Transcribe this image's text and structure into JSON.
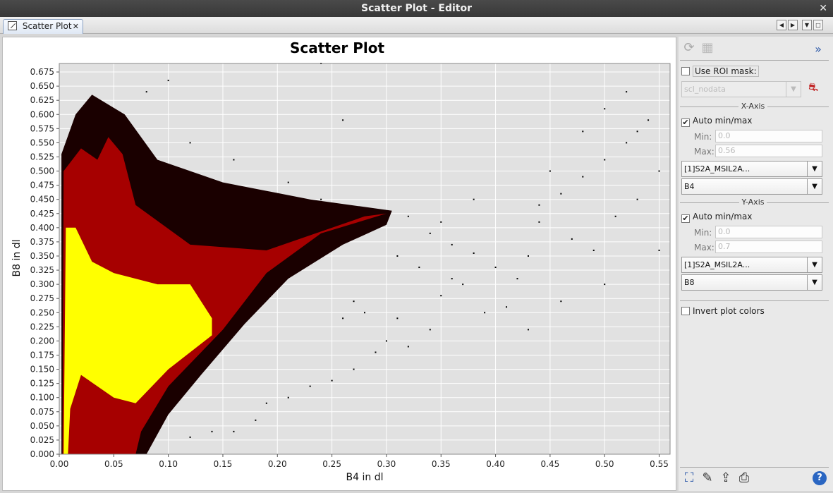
{
  "window": {
    "title": "Scatter Plot - Editor",
    "close_glyph": "✕"
  },
  "tabs": [
    {
      "label": "Scatter Plot",
      "close_glyph": "✕"
    }
  ],
  "tab_nav": {
    "prev_glyph": "◀",
    "next_glyph": "▶",
    "menu_glyph": "▼",
    "maximize_glyph": "□"
  },
  "colors": {
    "plot_background": "#e1e1e1",
    "gridline": "#ffffff",
    "density_low": "#1a0000",
    "density_mid": "#c00000",
    "density_high": "#ffff00"
  },
  "chart_data": {
    "type": "scatter",
    "title": "Scatter Plot",
    "xlabel": "B4 in dl",
    "ylabel": "B8 in dl",
    "xlim": [
      0.0,
      0.56
    ],
    "ylim": [
      0.0,
      0.69
    ],
    "x_ticks": [
      "0.00",
      "0.05",
      "0.10",
      "0.15",
      "0.20",
      "0.25",
      "0.30",
      "0.35",
      "0.40",
      "0.45",
      "0.50",
      "0.55"
    ],
    "y_ticks": [
      "0.000",
      "0.025",
      "0.050",
      "0.075",
      "0.100",
      "0.125",
      "0.150",
      "0.175",
      "0.200",
      "0.225",
      "0.250",
      "0.275",
      "0.300",
      "0.325",
      "0.350",
      "0.375",
      "0.400",
      "0.425",
      "0.450",
      "0.475",
      "0.500",
      "0.525",
      "0.550",
      "0.575",
      "0.600",
      "0.625",
      "0.650",
      "0.675"
    ],
    "grid": true,
    "rendering": "density",
    "density_regions": [
      {
        "level": "low",
        "points": [
          [
            0.002,
            0.0
          ],
          [
            0.002,
            0.53
          ],
          [
            0.015,
            0.6
          ],
          [
            0.03,
            0.635
          ],
          [
            0.06,
            0.6
          ],
          [
            0.09,
            0.52
          ],
          [
            0.15,
            0.48
          ],
          [
            0.23,
            0.45
          ],
          [
            0.305,
            0.43
          ],
          [
            0.3,
            0.405
          ],
          [
            0.26,
            0.37
          ],
          [
            0.21,
            0.31
          ],
          [
            0.17,
            0.23
          ],
          [
            0.13,
            0.14
          ],
          [
            0.1,
            0.07
          ],
          [
            0.08,
            0.0
          ]
        ]
      },
      {
        "level": "mid",
        "points": [
          [
            0.003,
            0.0
          ],
          [
            0.004,
            0.5
          ],
          [
            0.02,
            0.54
          ],
          [
            0.035,
            0.52
          ],
          [
            0.045,
            0.56
          ],
          [
            0.058,
            0.53
          ],
          [
            0.07,
            0.44
          ],
          [
            0.12,
            0.37
          ],
          [
            0.19,
            0.36
          ],
          [
            0.28,
            0.42
          ],
          [
            0.3,
            0.425
          ],
          [
            0.24,
            0.39
          ],
          [
            0.19,
            0.32
          ],
          [
            0.15,
            0.22
          ],
          [
            0.1,
            0.12
          ],
          [
            0.075,
            0.04
          ],
          [
            0.07,
            0.0
          ]
        ]
      },
      {
        "level": "high",
        "points": [
          [
            0.004,
            0.0
          ],
          [
            0.006,
            0.4
          ],
          [
            0.015,
            0.4
          ],
          [
            0.03,
            0.34
          ],
          [
            0.05,
            0.32
          ],
          [
            0.09,
            0.3
          ],
          [
            0.12,
            0.3
          ],
          [
            0.14,
            0.24
          ],
          [
            0.14,
            0.21
          ],
          [
            0.1,
            0.15
          ],
          [
            0.07,
            0.09
          ],
          [
            0.05,
            0.1
          ],
          [
            0.02,
            0.14
          ],
          [
            0.01,
            0.08
          ],
          [
            0.008,
            0.0
          ]
        ]
      }
    ],
    "scatter_points": [
      [
        0.32,
        0.42
      ],
      [
        0.34,
        0.39
      ],
      [
        0.36,
        0.37
      ],
      [
        0.38,
        0.355
      ],
      [
        0.4,
        0.33
      ],
      [
        0.42,
        0.31
      ],
      [
        0.44,
        0.44
      ],
      [
        0.46,
        0.46
      ],
      [
        0.48,
        0.49
      ],
      [
        0.5,
        0.52
      ],
      [
        0.52,
        0.55
      ],
      [
        0.53,
        0.57
      ],
      [
        0.54,
        0.59
      ],
      [
        0.5,
        0.61
      ],
      [
        0.45,
        0.5
      ],
      [
        0.43,
        0.35
      ],
      [
        0.37,
        0.3
      ],
      [
        0.35,
        0.28
      ],
      [
        0.33,
        0.33
      ],
      [
        0.31,
        0.24
      ],
      [
        0.3,
        0.2
      ],
      [
        0.29,
        0.18
      ],
      [
        0.27,
        0.15
      ],
      [
        0.25,
        0.13
      ],
      [
        0.23,
        0.12
      ],
      [
        0.21,
        0.1
      ],
      [
        0.19,
        0.09
      ],
      [
        0.18,
        0.06
      ],
      [
        0.16,
        0.04
      ],
      [
        0.14,
        0.04
      ],
      [
        0.12,
        0.03
      ],
      [
        0.41,
        0.26
      ],
      [
        0.44,
        0.41
      ],
      [
        0.47,
        0.38
      ],
      [
        0.49,
        0.36
      ],
      [
        0.51,
        0.42
      ],
      [
        0.53,
        0.45
      ],
      [
        0.55,
        0.5
      ],
      [
        0.55,
        0.36
      ],
      [
        0.52,
        0.64
      ],
      [
        0.48,
        0.57
      ],
      [
        0.39,
        0.25
      ],
      [
        0.36,
        0.31
      ],
      [
        0.34,
        0.22
      ],
      [
        0.32,
        0.19
      ],
      [
        0.43,
        0.22
      ],
      [
        0.46,
        0.27
      ],
      [
        0.5,
        0.3
      ],
      [
        0.28,
        0.25
      ],
      [
        0.27,
        0.27
      ],
      [
        0.26,
        0.24
      ],
      [
        0.31,
        0.35
      ],
      [
        0.35,
        0.41
      ],
      [
        0.38,
        0.45
      ],
      [
        0.24,
        0.45
      ],
      [
        0.21,
        0.48
      ],
      [
        0.16,
        0.52
      ],
      [
        0.12,
        0.55
      ],
      [
        0.08,
        0.64
      ],
      [
        0.1,
        0.66
      ],
      [
        0.24,
        0.69
      ],
      [
        0.26,
        0.59
      ]
    ]
  },
  "side_panel": {
    "expand_glyph": "»",
    "refresh_icon_glyph": "⟳",
    "table_icon_glyph": "▦",
    "use_roi_label": "Use ROI mask:",
    "roi_value": "scl_nodata",
    "x_axis_title": "X-Axis",
    "x_auto_label": "Auto min/max",
    "x_min_label": "Min:",
    "x_min_value": "0.0",
    "x_max_label": "Max:",
    "x_max_value": "0.56",
    "x_product": "[1]S2A_MSIL2A...",
    "x_band": "B4",
    "y_axis_title": "Y-Axis",
    "y_auto_label": "Auto min/max",
    "y_min_label": "Min:",
    "y_min_value": "0.0",
    "y_max_label": "Max:",
    "y_max_value": "0.7",
    "y_product": "[1]S2A_MSIL2A...",
    "y_band": "B8",
    "invert_label": "Invert plot colors",
    "check_glyph": "✔",
    "dropdown_glyph": "▼",
    "bottom_icons": {
      "zoom_all_glyph": "⛶",
      "edit_glyph": "✎",
      "export_glyph": "⇪",
      "print_glyph": "⎙",
      "help_glyph": "?"
    }
  }
}
